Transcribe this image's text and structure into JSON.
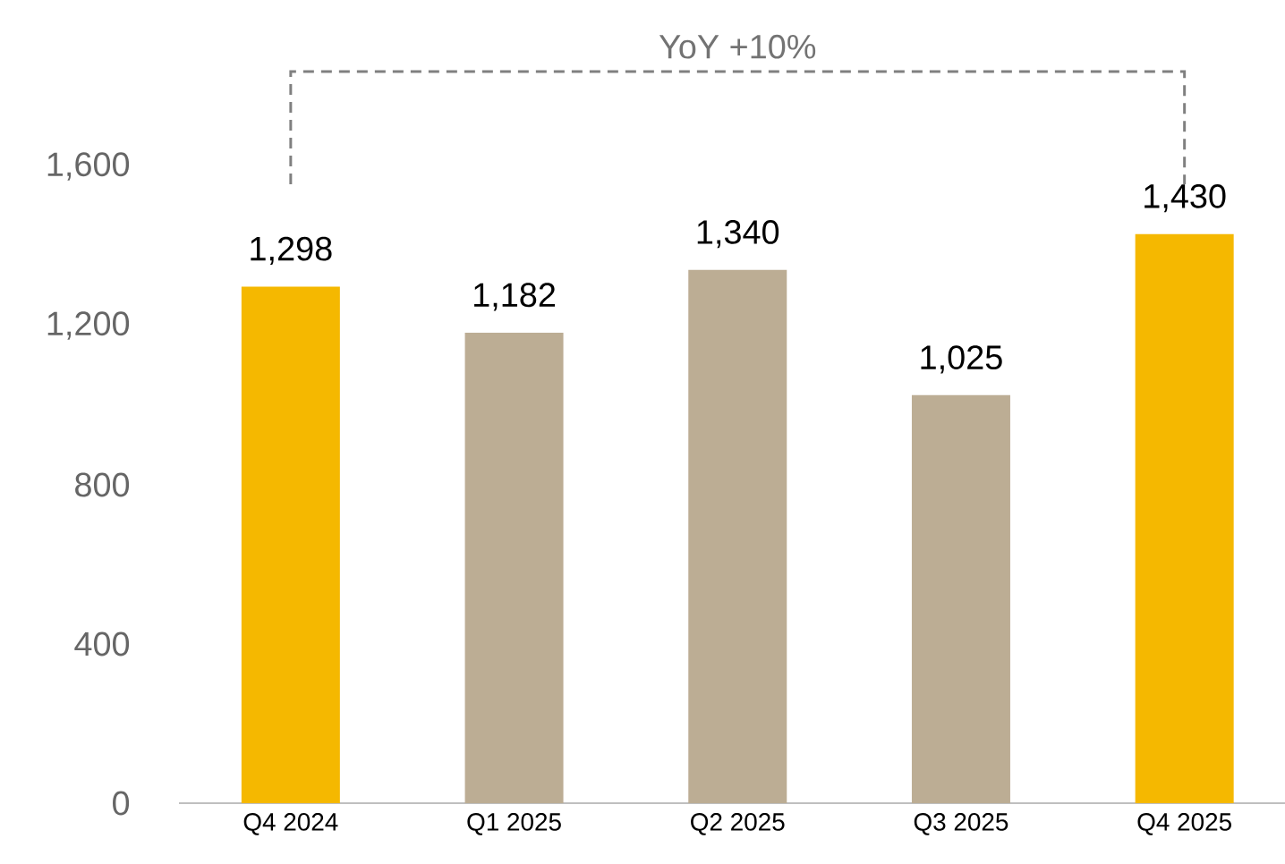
{
  "chart_data": {
    "type": "bar",
    "categories": [
      "Q4 2024",
      "Q1 2025",
      "Q2 2025",
      "Q3 2025",
      "Q4 2025"
    ],
    "values": [
      1298,
      1182,
      1340,
      1025,
      1430
    ],
    "colors": [
      "#f5b800",
      "#bcad94",
      "#bcad94",
      "#bcad94",
      "#f5b800"
    ],
    "value_labels": [
      "1,298",
      "1,182",
      "1,340",
      "1,025",
      "1,430"
    ],
    "ylim": [
      0,
      1600
    ],
    "yticks": [
      0,
      {
        "value": 400,
        "label": "400"
      },
      {
        "value": 800,
        "label": "800"
      },
      {
        "value": 1200,
        "label": "1,200"
      },
      {
        "value": 1600,
        "label": "1,600"
      }
    ],
    "annotations": [
      "YoY +10%"
    ],
    "grid": false
  }
}
